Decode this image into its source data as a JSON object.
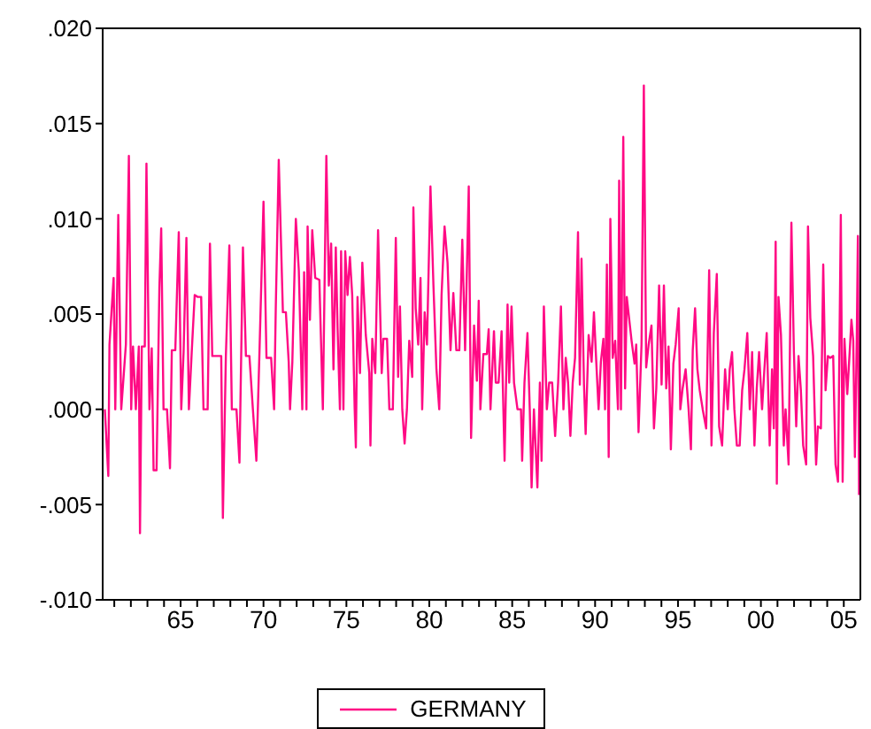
{
  "chart_data": {
    "type": "line",
    "legend": "bottom",
    "grid": false,
    "xlim": [
      1960.3,
      2006.0
    ],
    "xticks": [
      {
        "value": 1961,
        "label": null
      },
      {
        "value": 1962,
        "label": null
      },
      {
        "value": 1963,
        "label": null
      },
      {
        "value": 1964,
        "label": null
      },
      {
        "value": 1965,
        "label": "65"
      },
      {
        "value": 1966,
        "label": null
      },
      {
        "value": 1967,
        "label": null
      },
      {
        "value": 1968,
        "label": null
      },
      {
        "value": 1969,
        "label": null
      },
      {
        "value": 1970,
        "label": "70"
      },
      {
        "value": 1971,
        "label": null
      },
      {
        "value": 1972,
        "label": null
      },
      {
        "value": 1973,
        "label": null
      },
      {
        "value": 1974,
        "label": null
      },
      {
        "value": 1975,
        "label": "75"
      },
      {
        "value": 1976,
        "label": null
      },
      {
        "value": 1977,
        "label": null
      },
      {
        "value": 1978,
        "label": null
      },
      {
        "value": 1979,
        "label": null
      },
      {
        "value": 1980,
        "label": "80"
      },
      {
        "value": 1981,
        "label": null
      },
      {
        "value": 1982,
        "label": null
      },
      {
        "value": 1983,
        "label": null
      },
      {
        "value": 1984,
        "label": null
      },
      {
        "value": 1985,
        "label": "85"
      },
      {
        "value": 1986,
        "label": null
      },
      {
        "value": 1987,
        "label": null
      },
      {
        "value": 1988,
        "label": null
      },
      {
        "value": 1989,
        "label": null
      },
      {
        "value": 1990,
        "label": "90"
      },
      {
        "value": 1991,
        "label": null
      },
      {
        "value": 1992,
        "label": null
      },
      {
        "value": 1993,
        "label": null
      },
      {
        "value": 1994,
        "label": null
      },
      {
        "value": 1995,
        "label": "95"
      },
      {
        "value": 1996,
        "label": null
      },
      {
        "value": 1997,
        "label": null
      },
      {
        "value": 1998,
        "label": null
      },
      {
        "value": 1999,
        "label": null
      },
      {
        "value": 2000,
        "label": "00"
      },
      {
        "value": 2001,
        "label": null
      },
      {
        "value": 2002,
        "label": null
      },
      {
        "value": 2003,
        "label": null
      },
      {
        "value": 2004,
        "label": null
      },
      {
        "value": 2005,
        "label": "05"
      }
    ],
    "ylim": [
      -0.01,
      0.02
    ],
    "yticks": [
      {
        "value": -0.01,
        "label": "-.010"
      },
      {
        "value": -0.005,
        "label": "-.005"
      },
      {
        "value": 0,
        "label": ".000"
      },
      {
        "value": 0.005,
        "label": ".005"
      },
      {
        "value": 0.01,
        "label": ".010"
      },
      {
        "value": 0.015,
        "label": ".015"
      },
      {
        "value": 0.02,
        "label": ".020"
      }
    ],
    "x": [
      1960.43,
      1960.64,
      1960.71,
      1960.96,
      1961.06,
      1961.24,
      1961.42,
      1961.7,
      1961.88,
      1962.02,
      1962.13,
      1962.3,
      1962.48,
      1962.55,
      1962.66,
      1962.84,
      1962.94,
      1963.12,
      1963.26,
      1963.37,
      1963.55,
      1963.72,
      1963.83,
      1963.97,
      1964.18,
      1964.36,
      1964.47,
      1964.68,
      1964.89,
      1965.04,
      1965.18,
      1965.35,
      1965.5,
      1965.67,
      1965.85,
      1966.03,
      1966.24,
      1966.38,
      1966.63,
      1966.77,
      1966.91,
      1967.09,
      1967.27,
      1967.45,
      1967.55,
      1967.73,
      1967.94,
      1968.09,
      1968.37,
      1968.55,
      1968.76,
      1968.94,
      1969.15,
      1969.36,
      1969.57,
      1969.75,
      1970.0,
      1970.18,
      1970.46,
      1970.64,
      1970.74,
      1970.92,
      1971.17,
      1971.35,
      1971.52,
      1971.6,
      1971.74,
      1971.95,
      1972.13,
      1972.34,
      1972.45,
      1972.59,
      1972.66,
      1972.8,
      1972.94,
      1973.12,
      1973.37,
      1973.44,
      1973.58,
      1973.79,
      1973.94,
      1974.08,
      1974.22,
      1974.36,
      1974.47,
      1974.61,
      1974.68,
      1974.82,
      1974.93,
      1975.07,
      1975.21,
      1975.35,
      1975.5,
      1975.57,
      1975.67,
      1975.82,
      1975.96,
      1976.17,
      1976.38,
      1976.45,
      1976.56,
      1976.74,
      1976.91,
      1977.13,
      1977.23,
      1977.45,
      1977.59,
      1977.8,
      1977.98,
      1978.12,
      1978.23,
      1978.37,
      1978.51,
      1978.65,
      1978.79,
      1978.97,
      1979.04,
      1979.18,
      1979.33,
      1979.47,
      1979.57,
      1979.72,
      1979.86,
      1980.07,
      1980.25,
      1980.43,
      1980.6,
      1980.74,
      1980.92,
      1981.1,
      1981.28,
      1981.45,
      1981.63,
      1981.81,
      1981.99,
      1982.16,
      1982.38,
      1982.52,
      1982.7,
      1982.87,
      1982.98,
      1983.08,
      1983.26,
      1983.47,
      1983.58,
      1983.69,
      1983.9,
      1984.01,
      1984.18,
      1984.36,
      1984.54,
      1984.72,
      1984.82,
      1984.96,
      1985.11,
      1985.32,
      1985.53,
      1985.6,
      1985.74,
      1985.92,
      1986.06,
      1986.17,
      1986.31,
      1986.52,
      1986.67,
      1986.77,
      1986.91,
      1987.09,
      1987.23,
      1987.41,
      1987.59,
      1987.77,
      1987.94,
      1988.09,
      1988.23,
      1988.37,
      1988.51,
      1988.65,
      1988.79,
      1988.97,
      1989.08,
      1989.18,
      1989.33,
      1989.43,
      1989.61,
      1989.79,
      1989.93,
      1990.07,
      1990.21,
      1990.35,
      1990.5,
      1990.6,
      1990.71,
      1990.82,
      1990.92,
      1991.06,
      1991.21,
      1991.38,
      1991.45,
      1991.56,
      1991.7,
      1991.81,
      1991.91,
      1992.06,
      1992.2,
      1992.38,
      1992.48,
      1992.62,
      1992.8,
      1992.94,
      1993.08,
      1993.23,
      1993.4,
      1993.55,
      1993.69,
      1993.86,
      1994.01,
      1994.15,
      1994.29,
      1994.43,
      1994.57,
      1994.72,
      1994.86,
      1995.04,
      1995.14,
      1995.28,
      1995.46,
      1995.64,
      1995.78,
      1995.89,
      1996.03,
      1996.17,
      1996.31,
      1996.49,
      1996.7,
      1996.88,
      1997.02,
      1997.16,
      1997.34,
      1997.48,
      1997.66,
      1997.84,
      1998.0,
      1998.12,
      1998.26,
      1998.4,
      1998.55,
      1998.72,
      1998.87,
      1999.01,
      1999.18,
      1999.33,
      1999.47,
      1999.61,
      1999.75,
      1999.89,
      2000.07,
      2000.21,
      2000.35,
      2000.53,
      2000.67,
      2000.78,
      2000.89,
      2000.96,
      2001.06,
      2001.21,
      2001.38,
      2001.49,
      2001.67,
      2001.84,
      2001.99,
      2002.13,
      2002.27,
      2002.41,
      2002.55,
      2002.73,
      2002.84,
      2002.98,
      2003.15,
      2003.33,
      2003.44,
      2003.62,
      2003.76,
      2003.9,
      2004.04,
      2004.18,
      2004.36,
      2004.5,
      2004.65,
      2004.72,
      2004.82,
      2004.93,
      2005.04,
      2005.21,
      2005.36,
      2005.46,
      2005.57,
      2005.67,
      2005.78,
      2005.85,
      2005.92
    ],
    "series": [
      {
        "name": "GERMANY",
        "color": "#ff0a84",
        "values": [
          0,
          -0.0035,
          0.0034,
          0.0069,
          0,
          0.0102,
          0,
          0.0034,
          0.0133,
          0,
          0.0033,
          0,
          0.0033,
          -0.0065,
          0.0033,
          0.0033,
          0.0129,
          0,
          0.0032,
          -0.0032,
          -0.0032,
          0.0064,
          0.0095,
          0,
          0,
          -0.0031,
          0.0031,
          0.0031,
          0.0093,
          0,
          0.003,
          0.009,
          0,
          0.003,
          0.006,
          0.0059,
          0.0059,
          0,
          0,
          0.0087,
          0.0028,
          0.0028,
          0.0028,
          0.0028,
          -0.0057,
          0.0028,
          0.0086,
          0,
          0,
          -0.0028,
          0.0085,
          0.0028,
          0.0028,
          0,
          -0.0027,
          0.0028,
          0.0109,
          0.0027,
          0.0027,
          0,
          0.0053,
          0.0131,
          0.0051,
          0.0051,
          0.0025,
          0,
          0.0025,
          0.01,
          0.0073,
          0,
          0.0072,
          0,
          0.0096,
          0.0047,
          0.0094,
          0.0069,
          0.0068,
          0.0045,
          0,
          0.0133,
          0.0065,
          0.0087,
          0.0021,
          0.0085,
          0.0042,
          0,
          0.0083,
          0,
          0.0083,
          0.006,
          0.008,
          0.006,
          0,
          -0.002,
          0.0059,
          0.0019,
          0.0077,
          0.0039,
          0.0019,
          -0.0019,
          0.0037,
          0.0019,
          0.0094,
          0.0019,
          0.0037,
          0.0037,
          0,
          0,
          0.009,
          0.0017,
          0.0054,
          0,
          -0.0018,
          0,
          0.0036,
          0.0017,
          0.0106,
          0.0053,
          0.0034,
          0.0069,
          0,
          0.0051,
          0.0034,
          0.0117,
          0.0065,
          0.0021,
          0,
          0.006,
          0.0096,
          0.0077,
          0.0031,
          0.0061,
          0.0031,
          0.0031,
          0.0089,
          0.0031,
          0.0117,
          -0.0015,
          0.0044,
          0.0015,
          0.0057,
          0,
          0.0029,
          0.0029,
          0.0042,
          0,
          0.0041,
          0.0014,
          0.0014,
          0.0041,
          -0.0027,
          0.0055,
          0.0014,
          0.0054,
          0.0014,
          0,
          0,
          -0.0027,
          0.0014,
          0.004,
          0,
          -0.0041,
          0,
          -0.0041,
          0.0014,
          -0.0027,
          0.0054,
          0,
          0.0014,
          0.0014,
          -0.0014,
          0.0014,
          0.0054,
          0,
          0.0027,
          0.0014,
          -0.0014,
          0.0014,
          0.0027,
          0.0093,
          0.0013,
          0.0079,
          0.0013,
          -0.0013,
          0.0039,
          0.0025,
          0.0051,
          0.0025,
          0,
          0.0025,
          0.0037,
          0,
          0.0076,
          -0.0025,
          0.01,
          0.0027,
          0.0036,
          0,
          0.012,
          0,
          0.0143,
          0.0011,
          0.0059,
          0.0047,
          0.0036,
          0.0024,
          0.0034,
          -0.0012,
          0.0034,
          0.017,
          0.0022,
          0.0034,
          0.0044,
          -0.001,
          0.0011,
          0.0065,
          0.0013,
          0.0065,
          0.0011,
          0.0033,
          -0.0021,
          0.0024,
          0.0034,
          0.0053,
          0,
          0.0011,
          0.0021,
          0,
          -0.0021,
          0.0031,
          0.0053,
          0.0021,
          0.001,
          0,
          -0.001,
          0.0073,
          -0.0019,
          0.004,
          0.0071,
          -0.0009,
          -0.0019,
          0.0021,
          0,
          0.0021,
          0.003,
          0,
          -0.0019,
          -0.0019,
          0.001,
          0.0021,
          0.004,
          0,
          0.003,
          -0.0019,
          0.0011,
          0.003,
          0,
          0.0021,
          0.004,
          -0.0019,
          0.0021,
          -0.001,
          0.0088,
          -0.0039,
          0.0059,
          0.0039,
          -0.0019,
          0,
          -0.0029,
          0.0098,
          0.003,
          -0.0009,
          0.0028,
          0.001,
          -0.0019,
          -0.0029,
          0.0096,
          0.0048,
          0.0028,
          -0.0029,
          -0.0009,
          -0.001,
          0.0076,
          0.001,
          0.0028,
          0.0027,
          0.0028,
          -0.0029,
          -0.0038,
          0.0019,
          0.0102,
          -0.0038,
          0.0037,
          0.0008,
          0.0031,
          0.0047,
          0.0036,
          -0.0025,
          0.0036,
          0.0091,
          -0.0045
        ]
      }
    ]
  }
}
